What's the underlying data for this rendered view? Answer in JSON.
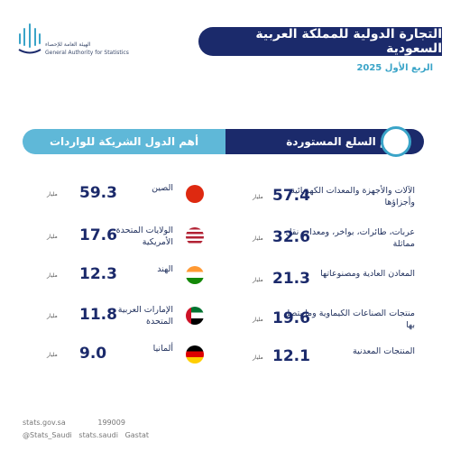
{
  "header": {
    "title": "التجارة الدولية للمملكة العربية السعودية",
    "subtitle": "الربع الأول 2025",
    "org_ar": "الهيئة العامة للإحصاء",
    "org_en": "General Authority for Statistics"
  },
  "unit": "مليار",
  "goods": {
    "title": "أهم السلع المستوردة",
    "items": [
      {
        "name": "الآلات والأجهزة والمعدات الكهربائية وأجزاؤها",
        "value": "57.4"
      },
      {
        "name": "عربات، طائرات، بواخر، ومعدات نقل مماثلة",
        "value": "32.6"
      },
      {
        "name": "المعادن العادية ومصنوعاتها",
        "value": "21.3"
      },
      {
        "name": "منتجات الصناعات الكيماوية وما يتصل بها",
        "value": "19.6"
      },
      {
        "name": "المنتجات المعدنية",
        "value": "12.1"
      }
    ]
  },
  "countries": {
    "title": "أهم الدول الشريكة للواردات",
    "items": [
      {
        "name": "الصين",
        "value": "59.3"
      },
      {
        "name": "الولايات المتحدة الأمريكية",
        "value": "17.6"
      },
      {
        "name": "الهند",
        "value": "12.3"
      },
      {
        "name": "الإمارات العربية المتحدة",
        "value": "11.8"
      },
      {
        "name": "ألمانيا",
        "value": "9.0"
      }
    ]
  },
  "footer": {
    "website": "stats.gov.sa",
    "phone": "199009",
    "twitter": "@Stats_Saudi",
    "social": "stats.saudi",
    "handle": "Gastat"
  }
}
